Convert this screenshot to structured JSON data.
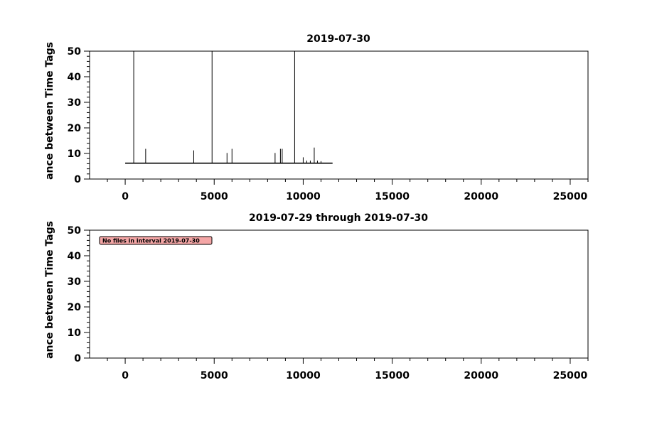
{
  "chart_data": [
    {
      "type": "line",
      "title": "2019-07-30",
      "ylabel": "ance between Time Tags",
      "xlabel": "",
      "xlim": [
        -2000,
        26000
      ],
      "ylim": [
        0,
        50
      ],
      "xticks": [
        0,
        5000,
        10000,
        15000,
        20000,
        25000
      ],
      "yticks": [
        0,
        10,
        20,
        30,
        40,
        50
      ],
      "grid": false,
      "baseline": {
        "x_start": 0,
        "x_end": 11650,
        "y": 6.2
      },
      "spikes": [
        {
          "x": 480,
          "y": 50
        },
        {
          "x": 1150,
          "y": 11.8
        },
        {
          "x": 3850,
          "y": 11.2
        },
        {
          "x": 4880,
          "y": 50
        },
        {
          "x": 5720,
          "y": 10.2
        },
        {
          "x": 6000,
          "y": 11.8
        },
        {
          "x": 8420,
          "y": 10.2
        },
        {
          "x": 8720,
          "y": 11.8
        },
        {
          "x": 8820,
          "y": 11.8
        },
        {
          "x": 9520,
          "y": 50
        },
        {
          "x": 10000,
          "y": 8.5
        },
        {
          "x": 10620,
          "y": 12.3
        },
        {
          "x": 10200,
          "y": 7.2
        },
        {
          "x": 10400,
          "y": 7.2
        },
        {
          "x": 10800,
          "y": 7.2
        },
        {
          "x": 11000,
          "y": 7.0
        }
      ]
    },
    {
      "type": "line",
      "title": "2019-07-29 through 2019-07-30",
      "ylabel": "ance between Time Tags",
      "xlabel": "",
      "xlim": [
        -2000,
        26000
      ],
      "ylim": [
        0,
        50
      ],
      "xticks": [
        0,
        5000,
        10000,
        15000,
        20000,
        25000
      ],
      "yticks": [
        0,
        10,
        20,
        30,
        40,
        50
      ],
      "grid": false,
      "annotation": {
        "text": "No files in interval 2019-07-30",
        "fill": "#f4a6a6"
      },
      "series": []
    }
  ],
  "colors": {
    "axis": "#000000",
    "data": "#000000",
    "annotation_fill": "#f4a6a6"
  }
}
